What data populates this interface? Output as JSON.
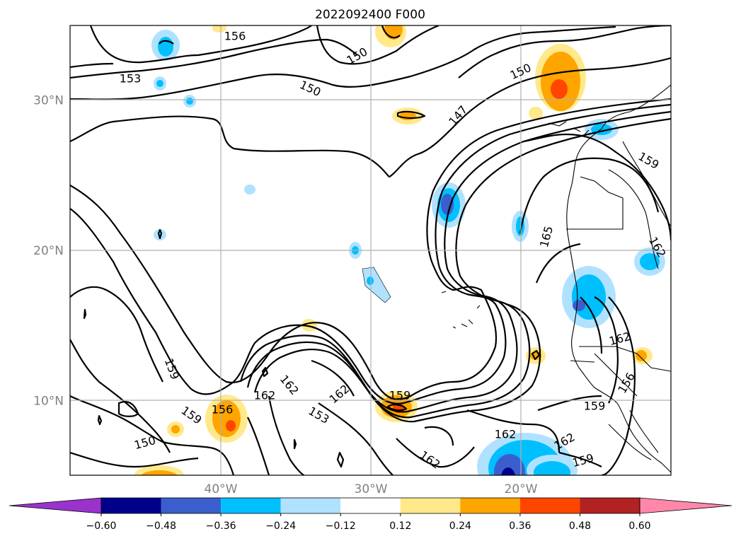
{
  "title": "2022092400 F000",
  "map": {
    "lat_labels": [
      {
        "text": "30°N",
        "lat": 30
      },
      {
        "text": "20°N",
        "lat": 20
      },
      {
        "text": "10°N",
        "lat": 10
      }
    ],
    "lon_labels": [
      {
        "text": "40°W",
        "lon": -40
      },
      {
        "text": "30°W",
        "lon": -30
      },
      {
        "text": "20°W",
        "lon": -20
      }
    ],
    "contour_labels": [
      "156",
      "153",
      "150",
      "150",
      "150",
      "147",
      "159",
      "165",
      "162",
      "159",
      "162",
      "162",
      "162",
      "153",
      "159",
      "156",
      "156",
      "159",
      "150",
      "159",
      "162",
      "162",
      "162",
      "159",
      "162"
    ]
  },
  "colorbar": {
    "ticks": [
      "−0.60",
      "−0.48",
      "−0.36",
      "−0.24",
      "−0.12",
      "0.12",
      "0.24",
      "0.36",
      "0.48",
      "0.60"
    ],
    "colors": {
      "under": "#9933cc",
      "bins": [
        "#00008b",
        "#3a5fcd",
        "#00bfff",
        "#b0e2ff",
        "#ffffff",
        "#ffe98a",
        "#ffa500",
        "#ff4500",
        "#b22222"
      ],
      "over": "#ff88aa"
    }
  }
}
